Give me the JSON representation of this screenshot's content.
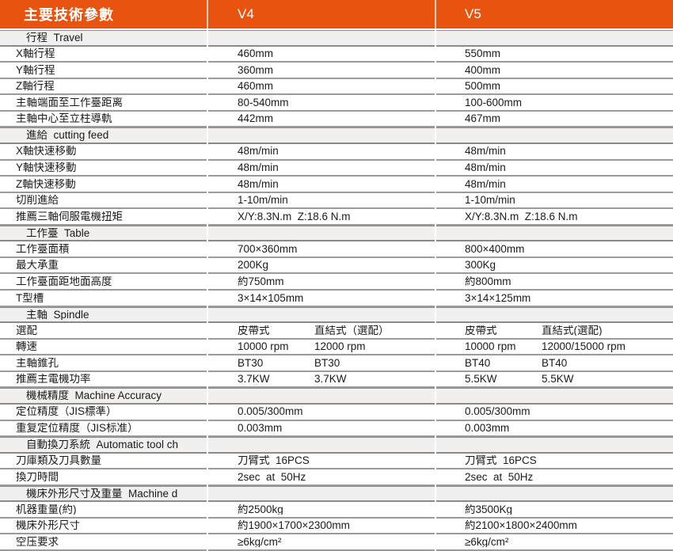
{
  "header": {
    "title": "主要技術參數",
    "v4": "V4",
    "v5": "V5"
  },
  "colors": {
    "accent": "#E8530F",
    "section_bg": "#F1F0EE",
    "row_border": "#9B9B9B",
    "header_text": "#FFFFFF",
    "body_text": "#1A1A1A"
  },
  "rows": [
    {
      "type": "section",
      "label": "行程  Travel"
    },
    {
      "type": "data",
      "label": "X軸行程",
      "v4": "460mm",
      "v5": "550mm"
    },
    {
      "type": "data",
      "label": "Y軸行程",
      "v4": "360mm",
      "v5": "400mm"
    },
    {
      "type": "data",
      "label": "Z軸行程",
      "v4": "460mm",
      "v5": "500mm"
    },
    {
      "type": "data",
      "label": "主軸端面至工作臺距离",
      "v4": "80-540mm",
      "v5": "100-600mm"
    },
    {
      "type": "data",
      "label": "主軸中心至立柱導軌",
      "v4": "442mm",
      "v5": "467mm"
    },
    {
      "type": "section",
      "label": "進給  cutting feed"
    },
    {
      "type": "data",
      "label": "X軸快速移動",
      "v4": "48m/min",
      "v5": "48m/min"
    },
    {
      "type": "data",
      "label": "Y軸快速移動",
      "v4": "48m/min",
      "v5": "48m/min"
    },
    {
      "type": "data",
      "label": "Z軸快速移動",
      "v4": "48m/min",
      "v5": "48m/min"
    },
    {
      "type": "data",
      "label": "切削進給",
      "v4": "1-10m/min",
      "v5": "1-10m/min"
    },
    {
      "type": "data",
      "label": "推薦三軸伺服電機扭矩",
      "v4": "X/Y:8.3N.m  Z:18.6 N.m",
      "v5": "X/Y:8.3N.m  Z:18.6 N.m"
    },
    {
      "type": "section",
      "label": "工作臺  Table"
    },
    {
      "type": "data",
      "label": "工作臺面積",
      "v4": "700×360mm",
      "v5": "800×400mm"
    },
    {
      "type": "data",
      "label": "最大承重",
      "v4": "200Kg",
      "v5": "300Kg"
    },
    {
      "type": "data",
      "label": "工作臺面距地面高度",
      "v4": "約750mm",
      "v5": "約800mm"
    },
    {
      "type": "data",
      "label": "T型槽",
      "v4": "3×14×105mm",
      "v5": "3×14×125mm"
    },
    {
      "type": "section",
      "label": "主軸  Spindle"
    },
    {
      "type": "data",
      "label": "選配",
      "v4": "皮帶式",
      "v4b": "直結式（選配）",
      "v5": "皮帶式",
      "v5b": "直結式(選配)"
    },
    {
      "type": "data",
      "label": "轉速",
      "v4": "10000 rpm",
      "v4b": "12000 rpm",
      "v5": "10000 rpm",
      "v5b": "12000/15000 rpm"
    },
    {
      "type": "data",
      "label": "主軸錐孔",
      "v4": "BT30",
      "v4b": "BT30",
      "v5": "BT40",
      "v5b": "BT40"
    },
    {
      "type": "data",
      "label": "推薦主電機功率",
      "v4": "3.7KW",
      "v4b": "3.7KW",
      "v5": "5.5KW",
      "v5b": "5.5KW"
    },
    {
      "type": "section",
      "label": "機械精度  Machine Accuracy"
    },
    {
      "type": "data",
      "label": "定位精度（JIS標準）",
      "v4": "0.005/300mm",
      "v5": "0.005/300mm"
    },
    {
      "type": "data",
      "label": "重复定位精度（JIS标准）",
      "v4": "0.003mm",
      "v5": "0.003mm"
    },
    {
      "type": "section",
      "label": "自動換刀系統  Automatic tool ch"
    },
    {
      "type": "data",
      "label": "刀庫類及刀具數量",
      "v4": "刀臂式  16PCS",
      "v5": "刀臂式  16PCS"
    },
    {
      "type": "data",
      "label": "換刀時間",
      "v4": "2sec  at  50Hz",
      "v5": "2sec  at  50Hz"
    },
    {
      "type": "section",
      "label": "機床外形尺寸及重量  Machine d"
    },
    {
      "type": "data",
      "label": "机器重量(約)",
      "v4": "約2500kg",
      "v5": "約3500Kg"
    },
    {
      "type": "data",
      "label": "機床外形尺寸",
      "v4": "約1900×1700×2300mm",
      "v5": "約2100×1800×2400mm"
    },
    {
      "type": "data",
      "label": "空压要求",
      "v4": "≥6kg/cm²",
      "v5": "≥6kg/cm²"
    }
  ]
}
